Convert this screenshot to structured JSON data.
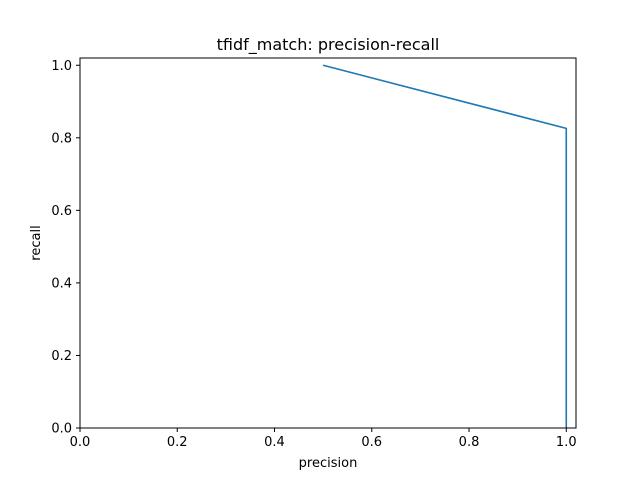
{
  "chart_data": {
    "type": "line",
    "title": "tfidf_match: precision-recall",
    "xlabel": "precision",
    "ylabel": "recall",
    "xlim": [
      0.0,
      1.02
    ],
    "ylim": [
      0.0,
      1.02
    ],
    "xticks": [
      "0.0",
      "0.2",
      "0.4",
      "0.6",
      "0.8",
      "1.0"
    ],
    "yticks": [
      "0.0",
      "0.2",
      "0.4",
      "0.6",
      "0.8",
      "1.0"
    ],
    "grid": false,
    "series": [
      {
        "x": [
          0.5,
          1.0,
          1.0
        ],
        "y": [
          1.0,
          0.826,
          0.0
        ],
        "color": "#1f77b4"
      }
    ]
  }
}
